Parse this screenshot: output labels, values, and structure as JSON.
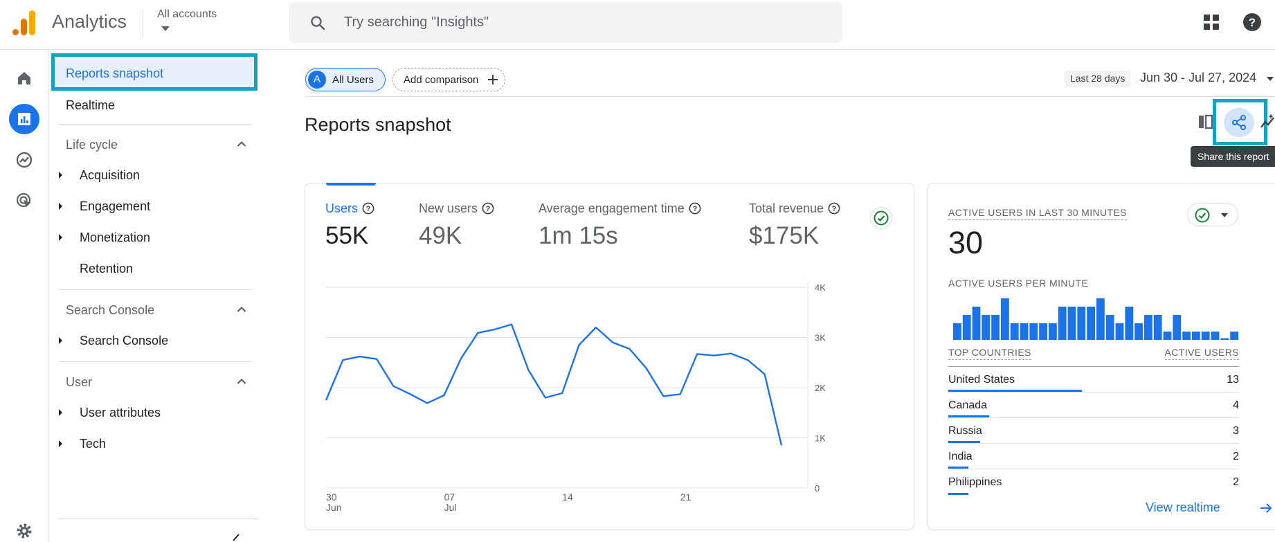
{
  "topbar": {
    "app_title": "Analytics",
    "accounts_label": "All accounts",
    "search_placeholder": "Try searching \"Insights\""
  },
  "rail": {
    "items": [
      "home-icon",
      "reports-icon",
      "explore-icon",
      "advertising-icon"
    ],
    "bottom_icon": "settings-icon"
  },
  "nav": {
    "snapshot": "Reports snapshot",
    "realtime": "Realtime",
    "lifecycle": {
      "title": "Life cycle",
      "items": [
        "Acquisition",
        "Engagement",
        "Monetization",
        "Retention"
      ]
    },
    "search_console": {
      "title": "Search Console",
      "items": [
        "Search Console"
      ]
    },
    "user": {
      "title": "User",
      "items": [
        "User attributes",
        "Tech"
      ]
    }
  },
  "comparison": {
    "all_users_badge": "A",
    "all_users": "All Users",
    "add_comparison": "Add comparison"
  },
  "date": {
    "preset": "Last 28 days",
    "range": "Jun 30 - Jul 27, 2024"
  },
  "page_title": "Reports snapshot",
  "tooltip": "Share this report",
  "metrics": [
    {
      "label": "Users",
      "value": "55K"
    },
    {
      "label": "New users",
      "value": "49K"
    },
    {
      "label": "Average engagement time",
      "value": "1m 15s"
    },
    {
      "label": "Total revenue",
      "value": "$175K"
    }
  ],
  "chart_data": {
    "type": "line",
    "series": [
      {
        "values": [
          1750,
          2550,
          2620,
          2570,
          2030,
          1870,
          1690,
          1850,
          2580,
          3090,
          3160,
          3260,
          2350,
          1800,
          1890,
          2850,
          3200,
          2900,
          2770,
          2380,
          1830,
          1870,
          2670,
          2640,
          2680,
          2550,
          2270,
          850
        ]
      }
    ],
    "x_tick_labels": [
      {
        "index": 0,
        "top": "30",
        "bottom": "Jun"
      },
      {
        "index": 7,
        "top": "07",
        "bottom": "Jul"
      },
      {
        "index": 14,
        "top": "14",
        "bottom": ""
      },
      {
        "index": 21,
        "top": "21",
        "bottom": ""
      }
    ],
    "y_ticks": [
      "0",
      "1K",
      "2K",
      "3K",
      "4K"
    ],
    "ylim": [
      0,
      4000
    ],
    "grid": true,
    "color": "#1a73e8"
  },
  "realtime": {
    "title": "Active users in last 30 minutes",
    "value": "30",
    "per_minute_title": "Active users per minute",
    "per_minute": [
      2,
      3,
      4,
      3,
      3,
      5,
      2,
      2,
      2,
      2,
      2,
      4,
      4,
      4,
      4,
      5,
      3,
      2,
      4,
      2,
      3,
      3,
      1,
      3,
      1,
      1,
      1,
      1,
      0,
      1
    ],
    "countries_header": "Top countries",
    "users_header": "Active users",
    "countries": [
      {
        "name": "United States",
        "value": "13",
        "share": 0.46
      },
      {
        "name": "Canada",
        "value": "4",
        "share": 0.14
      },
      {
        "name": "Russia",
        "value": "3",
        "share": 0.11
      },
      {
        "name": "India",
        "value": "2",
        "share": 0.07
      },
      {
        "name": "Philippines",
        "value": "2",
        "share": 0.07
      }
    ],
    "view_link": "View realtime"
  },
  "colors": {
    "accent": "#1a73e8",
    "highlight": "#12a4c7",
    "positive": "#188038"
  }
}
